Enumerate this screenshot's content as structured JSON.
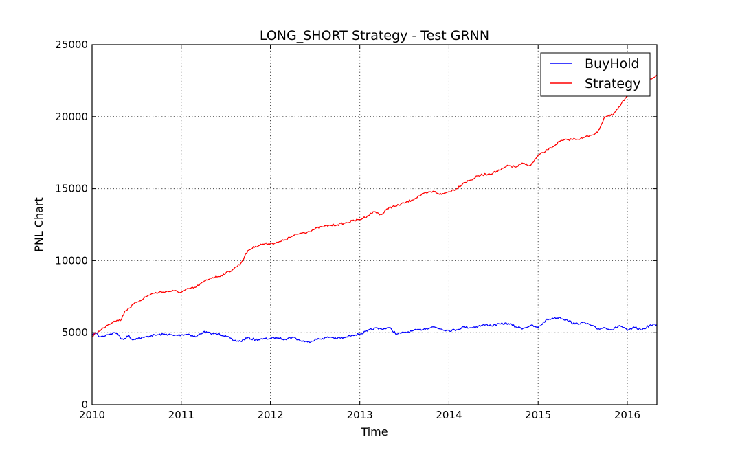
{
  "chart_data": {
    "type": "line",
    "title": "LONG_SHORT Strategy -  Test GRNN",
    "xlabel": "Time",
    "ylabel": "PNL Chart",
    "xlim": [
      "2010-01-01",
      "2016-05-01"
    ],
    "ylim": [
      0,
      25000
    ],
    "x_ticks": [
      "2010",
      "2011",
      "2012",
      "2013",
      "2014",
      "2015",
      "2016"
    ],
    "y_ticks": [
      "0",
      "5000",
      "10000",
      "15000",
      "20000",
      "25000"
    ],
    "grid": true,
    "legend_position": "top-right",
    "series": [
      {
        "name": "BuyHold",
        "color": "#0000ff",
        "points": [
          [
            "2010-01-01",
            4800
          ],
          [
            "2010-01-15",
            5000
          ],
          [
            "2010-02-01",
            4700
          ],
          [
            "2010-02-15",
            4750
          ],
          [
            "2010-03-01",
            4850
          ],
          [
            "2010-03-15",
            4900
          ],
          [
            "2010-04-01",
            5000
          ],
          [
            "2010-04-15",
            4950
          ],
          [
            "2010-05-01",
            4550
          ],
          [
            "2010-05-15",
            4600
          ],
          [
            "2010-06-01",
            4800
          ],
          [
            "2010-06-15",
            4500
          ],
          [
            "2010-07-01",
            4600
          ],
          [
            "2010-08-01",
            4650
          ],
          [
            "2010-09-01",
            4800
          ],
          [
            "2010-10-01",
            4850
          ],
          [
            "2010-11-01",
            4900
          ],
          [
            "2010-12-01",
            4800
          ],
          [
            "2011-01-01",
            4850
          ],
          [
            "2011-02-01",
            4900
          ],
          [
            "2011-03-01",
            4700
          ],
          [
            "2011-04-01",
            5050
          ],
          [
            "2011-05-01",
            4950
          ],
          [
            "2011-06-01",
            4900
          ],
          [
            "2011-07-01",
            4800
          ],
          [
            "2011-08-01",
            4450
          ],
          [
            "2011-09-01",
            4400
          ],
          [
            "2011-10-01",
            4650
          ],
          [
            "2011-11-01",
            4500
          ],
          [
            "2011-12-01",
            4550
          ],
          [
            "2012-01-01",
            4600
          ],
          [
            "2012-02-01",
            4650
          ],
          [
            "2012-03-01",
            4550
          ],
          [
            "2012-04-01",
            4700
          ],
          [
            "2012-05-01",
            4450
          ],
          [
            "2012-06-01",
            4350
          ],
          [
            "2012-07-01",
            4500
          ],
          [
            "2012-08-01",
            4600
          ],
          [
            "2012-09-01",
            4700
          ],
          [
            "2012-10-01",
            4600
          ],
          [
            "2012-11-01",
            4650
          ],
          [
            "2012-12-01",
            4850
          ],
          [
            "2013-01-01",
            4900
          ],
          [
            "2013-02-01",
            5100
          ],
          [
            "2013-03-01",
            5300
          ],
          [
            "2013-04-01",
            5250
          ],
          [
            "2013-05-01",
            5350
          ],
          [
            "2013-06-01",
            4900
          ],
          [
            "2013-07-01",
            5000
          ],
          [
            "2013-08-01",
            5100
          ],
          [
            "2013-09-01",
            5200
          ],
          [
            "2013-10-01",
            5300
          ],
          [
            "2013-11-01",
            5400
          ],
          [
            "2013-12-01",
            5250
          ],
          [
            "2014-01-01",
            5150
          ],
          [
            "2014-02-01",
            5200
          ],
          [
            "2014-03-01",
            5400
          ],
          [
            "2014-04-01",
            5350
          ],
          [
            "2014-05-01",
            5450
          ],
          [
            "2014-06-01",
            5550
          ],
          [
            "2014-07-01",
            5500
          ],
          [
            "2014-08-01",
            5600
          ],
          [
            "2014-09-01",
            5650
          ],
          [
            "2014-10-01",
            5400
          ],
          [
            "2014-11-01",
            5300
          ],
          [
            "2014-12-01",
            5500
          ],
          [
            "2015-01-01",
            5350
          ],
          [
            "2015-02-01",
            5850
          ],
          [
            "2015-03-01",
            6000
          ],
          [
            "2015-04-01",
            6050
          ],
          [
            "2015-05-01",
            5850
          ],
          [
            "2015-06-01",
            5600
          ],
          [
            "2015-07-01",
            5700
          ],
          [
            "2015-08-01",
            5550
          ],
          [
            "2015-09-01",
            5250
          ],
          [
            "2015-10-01",
            5350
          ],
          [
            "2015-11-01",
            5200
          ],
          [
            "2015-12-01",
            5500
          ],
          [
            "2016-01-01",
            5150
          ],
          [
            "2016-02-01",
            5350
          ],
          [
            "2016-03-01",
            5200
          ],
          [
            "2016-04-01",
            5500
          ],
          [
            "2016-05-01",
            5550
          ]
        ]
      },
      {
        "name": "Strategy",
        "color": "#ff0000",
        "points": [
          [
            "2010-01-01",
            4700
          ],
          [
            "2010-01-15",
            5000
          ],
          [
            "2010-02-01",
            5100
          ],
          [
            "2010-03-01",
            5500
          ],
          [
            "2010-04-01",
            5800
          ],
          [
            "2010-05-01",
            5900
          ],
          [
            "2010-05-15",
            6500
          ],
          [
            "2010-06-01",
            6700
          ],
          [
            "2010-07-01",
            7100
          ],
          [
            "2010-08-01",
            7400
          ],
          [
            "2010-09-01",
            7700
          ],
          [
            "2010-10-01",
            7800
          ],
          [
            "2010-11-01",
            7850
          ],
          [
            "2010-12-01",
            7900
          ],
          [
            "2011-01-01",
            7800
          ],
          [
            "2011-02-01",
            8050
          ],
          [
            "2011-03-01",
            8150
          ],
          [
            "2011-04-01",
            8500
          ],
          [
            "2011-05-01",
            8800
          ],
          [
            "2011-06-01",
            8900
          ],
          [
            "2011-07-01",
            9100
          ],
          [
            "2011-08-01",
            9400
          ],
          [
            "2011-09-01",
            9800
          ],
          [
            "2011-10-01",
            10700
          ],
          [
            "2011-11-01",
            11000
          ],
          [
            "2011-12-01",
            11150
          ],
          [
            "2012-01-01",
            11200
          ],
          [
            "2012-02-01",
            11250
          ],
          [
            "2012-03-01",
            11450
          ],
          [
            "2012-04-01",
            11700
          ],
          [
            "2012-05-01",
            11900
          ],
          [
            "2012-06-01",
            12000
          ],
          [
            "2012-07-01",
            12200
          ],
          [
            "2012-08-01",
            12350
          ],
          [
            "2012-09-01",
            12450
          ],
          [
            "2012-10-01",
            12500
          ],
          [
            "2012-11-01",
            12600
          ],
          [
            "2012-12-01",
            12750
          ],
          [
            "2013-01-01",
            12850
          ],
          [
            "2013-02-01",
            13100
          ],
          [
            "2013-03-01",
            13400
          ],
          [
            "2013-04-01",
            13200
          ],
          [
            "2013-05-01",
            13700
          ],
          [
            "2013-06-01",
            13800
          ],
          [
            "2013-07-01",
            14000
          ],
          [
            "2013-08-01",
            14200
          ],
          [
            "2013-09-01",
            14500
          ],
          [
            "2013-10-01",
            14700
          ],
          [
            "2013-11-01",
            14800
          ],
          [
            "2013-12-01",
            14600
          ],
          [
            "2014-01-01",
            14800
          ],
          [
            "2014-02-01",
            15000
          ],
          [
            "2014-03-01",
            15400
          ],
          [
            "2014-04-01",
            15600
          ],
          [
            "2014-05-01",
            15900
          ],
          [
            "2014-06-01",
            16000
          ],
          [
            "2014-07-01",
            16100
          ],
          [
            "2014-08-01",
            16300
          ],
          [
            "2014-09-01",
            16600
          ],
          [
            "2014-10-01",
            16500
          ],
          [
            "2014-11-01",
            16750
          ],
          [
            "2014-12-01",
            16600
          ],
          [
            "2015-01-01",
            17300
          ],
          [
            "2015-02-01",
            17600
          ],
          [
            "2015-03-01",
            17900
          ],
          [
            "2015-04-01",
            18300
          ],
          [
            "2015-05-01",
            18400
          ],
          [
            "2015-06-01",
            18450
          ],
          [
            "2015-07-01",
            18500
          ],
          [
            "2015-08-01",
            18700
          ],
          [
            "2015-09-01",
            18900
          ],
          [
            "2015-10-01",
            20000
          ],
          [
            "2015-11-01",
            20100
          ],
          [
            "2015-12-01",
            20700
          ],
          [
            "2016-01-01",
            21500
          ],
          [
            "2016-02-01",
            21800
          ],
          [
            "2016-03-01",
            22300
          ],
          [
            "2016-04-01",
            22600
          ],
          [
            "2016-05-01",
            22900
          ]
        ]
      }
    ]
  }
}
